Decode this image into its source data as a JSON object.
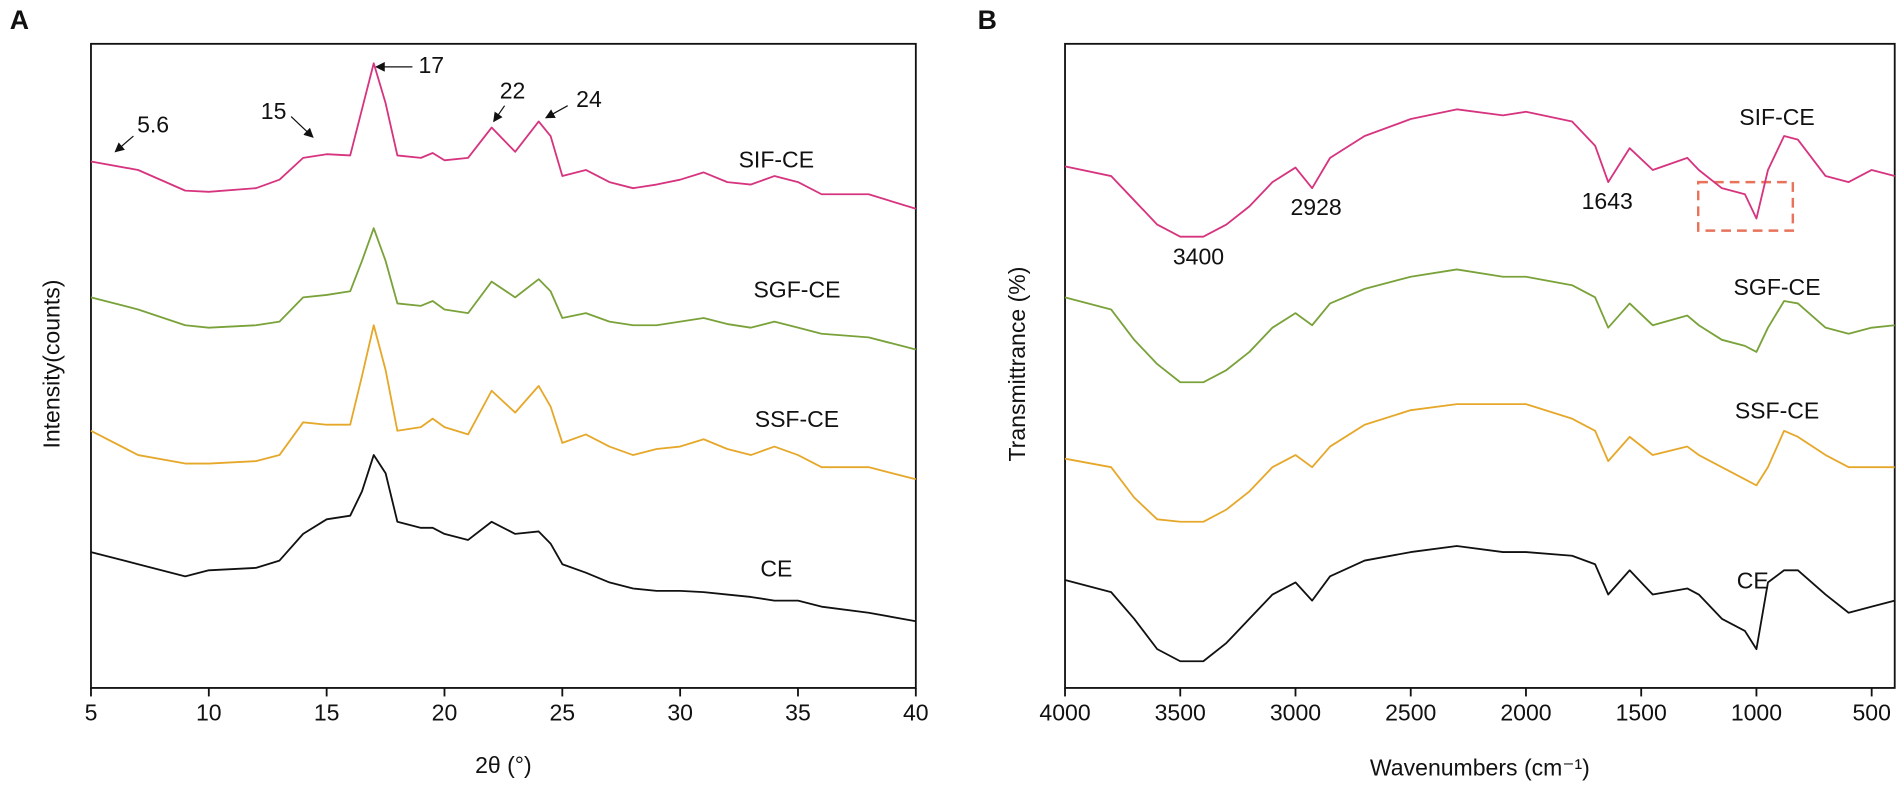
{
  "chart_data": [
    {
      "type": "line",
      "panel": "A",
      "xlabel": "2θ (°)",
      "ylabel": "Intensity(counts)",
      "xlim": [
        5,
        40
      ],
      "ylim": [
        0,
        531
      ],
      "xticks": [
        5,
        10,
        15,
        20,
        25,
        30,
        35,
        40
      ],
      "annotations": [
        {
          "text": "5.6"
        },
        {
          "text": "15"
        },
        {
          "text": "17"
        },
        {
          "text": "22"
        },
        {
          "text": "24"
        }
      ],
      "x": [
        5,
        7,
        9,
        10,
        12,
        13,
        14,
        15,
        16,
        16.5,
        17,
        17.5,
        18,
        19,
        19.5,
        20,
        21,
        22,
        23,
        24,
        24.5,
        25,
        26,
        27,
        28,
        29,
        30,
        31,
        32,
        33,
        34,
        35,
        36,
        38,
        40
      ],
      "series": [
        {
          "name": "SIF-CE",
          "color": "#d6347f",
          "values": [
            434,
            427,
            410,
            409,
            412,
            419,
            437,
            440,
            439,
            477,
            515,
            482,
            439,
            437,
            441,
            435,
            437,
            462,
            442,
            467,
            455,
            422,
            427,
            417,
            412,
            415,
            419,
            425,
            417,
            415,
            422,
            417,
            407,
            407,
            395
          ]
        },
        {
          "name": "SGF-CE",
          "color": "#7aa23a",
          "values": [
            322,
            312,
            299,
            297,
            299,
            302,
            322,
            324,
            327,
            352,
            379,
            352,
            317,
            315,
            319,
            312,
            309,
            335,
            322,
            337,
            327,
            305,
            309,
            302,
            299,
            299,
            302,
            305,
            300,
            297,
            302,
            297,
            292,
            289,
            279
          ]
        },
        {
          "name": "SSF-CE",
          "color": "#e6a82a",
          "values": [
            212,
            192,
            185,
            185,
            187,
            192,
            219,
            217,
            217,
            257,
            299,
            262,
            212,
            215,
            222,
            215,
            209,
            245,
            227,
            249,
            232,
            202,
            209,
            199,
            192,
            197,
            199,
            205,
            197,
            192,
            199,
            192,
            182,
            182,
            172
          ]
        },
        {
          "name": "CE",
          "color": "#111111",
          "values": [
            112,
            102,
            92,
            97,
            99,
            105,
            127,
            139,
            142,
            162,
            192,
            177,
            137,
            132,
            132,
            127,
            122,
            137,
            127,
            129,
            119,
            102,
            95,
            87,
            82,
            80,
            80,
            79,
            77,
            75,
            72,
            72,
            67,
            62,
            55
          ]
        }
      ]
    },
    {
      "type": "line",
      "panel": "B",
      "xlabel": "Wavenumbers (cm⁻¹)",
      "ylabel": "Transmittrance (%)",
      "xlim": [
        4000,
        400
      ],
      "ylim": [
        0,
        531
      ],
      "xticks": [
        4000,
        3500,
        3000,
        2500,
        2000,
        1500,
        1000,
        500
      ],
      "annotations": [
        {
          "text": "3400"
        },
        {
          "text": "2928"
        },
        {
          "text": "1643"
        }
      ],
      "x": [
        4000,
        3800,
        3700,
        3600,
        3500,
        3400,
        3300,
        3200,
        3100,
        3000,
        2928,
        2850,
        2700,
        2500,
        2300,
        2100,
        2000,
        1800,
        1700,
        1643,
        1550,
        1450,
        1300,
        1250,
        1150,
        1050,
        1000,
        950,
        880,
        820,
        700,
        600,
        500,
        400
      ],
      "series": [
        {
          "name": "SIF-CE",
          "color": "#d6347f",
          "values": [
            430,
            422,
            402,
            382,
            372,
            372,
            382,
            397,
            417,
            429,
            412,
            437,
            455,
            469,
            477,
            472,
            475,
            467,
            447,
            417,
            445,
            427,
            437,
            427,
            412,
            407,
            387,
            427,
            455,
            452,
            422,
            417,
            427,
            422
          ]
        },
        {
          "name": "SGF-CE",
          "color": "#7aa23a",
          "values": [
            322,
            312,
            287,
            267,
            252,
            252,
            262,
            277,
            297,
            309,
            299,
            317,
            329,
            339,
            345,
            339,
            339,
            332,
            322,
            297,
            317,
            299,
            307,
            299,
            287,
            282,
            277,
            297,
            319,
            317,
            297,
            292,
            297,
            299
          ]
        },
        {
          "name": "SSF-CE",
          "color": "#e6a82a",
          "values": [
            189,
            182,
            157,
            139,
            137,
            137,
            147,
            162,
            182,
            192,
            182,
            199,
            217,
            229,
            234,
            234,
            234,
            222,
            212,
            187,
            207,
            192,
            199,
            192,
            182,
            172,
            167,
            182,
            212,
            207,
            192,
            182,
            182,
            182
          ]
        },
        {
          "name": "CE",
          "color": "#111111",
          "values": [
            89,
            79,
            57,
            32,
            22,
            22,
            37,
            57,
            77,
            87,
            72,
            92,
            105,
            112,
            117,
            112,
            112,
            109,
            102,
            77,
            97,
            77,
            82,
            77,
            57,
            47,
            32,
            87,
            97,
            97,
            77,
            62,
            67,
            72
          ]
        }
      ]
    }
  ]
}
